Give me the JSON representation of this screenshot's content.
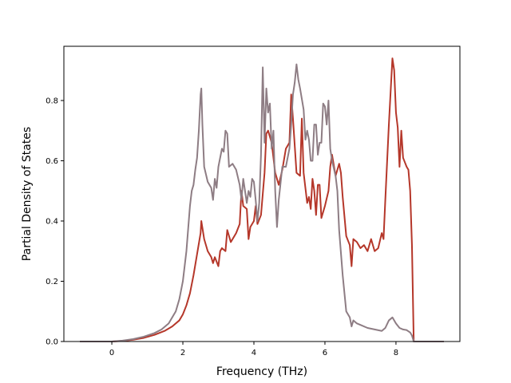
{
  "chart_data": {
    "type": "line",
    "title": "",
    "xlabel": "Frequency (THz)",
    "ylabel": "Partial Density of States",
    "xlim": [
      -1.35,
      9.8
    ],
    "ylim": [
      0.0,
      0.98
    ],
    "xticks": [
      0,
      2,
      4,
      6,
      8
    ],
    "xtick_labels": [
      "0",
      "2",
      "4",
      "6",
      "8"
    ],
    "yticks": [
      0.0,
      0.2,
      0.4,
      0.6,
      0.8
    ],
    "ytick_labels": [
      "0.0",
      "0.2",
      "0.4",
      "0.6",
      "0.8"
    ],
    "grid": false,
    "legend": "none",
    "series": [
      {
        "color": "#b5372a",
        "points": [
          [
            -0.9,
            0.0
          ],
          [
            0.0,
            0.0
          ],
          [
            0.3,
            0.002
          ],
          [
            0.6,
            0.006
          ],
          [
            0.9,
            0.012
          ],
          [
            1.2,
            0.022
          ],
          [
            1.5,
            0.036
          ],
          [
            1.7,
            0.05
          ],
          [
            1.9,
            0.07
          ],
          [
            2.0,
            0.09
          ],
          [
            2.1,
            0.12
          ],
          [
            2.2,
            0.16
          ],
          [
            2.3,
            0.22
          ],
          [
            2.4,
            0.29
          ],
          [
            2.5,
            0.36
          ],
          [
            2.52,
            0.4
          ],
          [
            2.6,
            0.34
          ],
          [
            2.7,
            0.3
          ],
          [
            2.8,
            0.28
          ],
          [
            2.85,
            0.26
          ],
          [
            2.9,
            0.28
          ],
          [
            3.0,
            0.25
          ],
          [
            3.05,
            0.3
          ],
          [
            3.1,
            0.31
          ],
          [
            3.2,
            0.3
          ],
          [
            3.25,
            0.37
          ],
          [
            3.35,
            0.33
          ],
          [
            3.5,
            0.36
          ],
          [
            3.6,
            0.39
          ],
          [
            3.65,
            0.5
          ],
          [
            3.7,
            0.45
          ],
          [
            3.8,
            0.44
          ],
          [
            3.85,
            0.34
          ],
          [
            3.9,
            0.38
          ],
          [
            4.0,
            0.4
          ],
          [
            4.05,
            0.45
          ],
          [
            4.1,
            0.39
          ],
          [
            4.2,
            0.42
          ],
          [
            4.3,
            0.56
          ],
          [
            4.35,
            0.69
          ],
          [
            4.4,
            0.7
          ],
          [
            4.5,
            0.66
          ],
          [
            4.6,
            0.56
          ],
          [
            4.7,
            0.52
          ],
          [
            4.8,
            0.57
          ],
          [
            4.9,
            0.64
          ],
          [
            5.0,
            0.66
          ],
          [
            5.05,
            0.82
          ],
          [
            5.1,
            0.74
          ],
          [
            5.2,
            0.56
          ],
          [
            5.3,
            0.55
          ],
          [
            5.35,
            0.74
          ],
          [
            5.4,
            0.56
          ],
          [
            5.5,
            0.46
          ],
          [
            5.55,
            0.48
          ],
          [
            5.6,
            0.44
          ],
          [
            5.65,
            0.54
          ],
          [
            5.7,
            0.5
          ],
          [
            5.75,
            0.42
          ],
          [
            5.8,
            0.52
          ],
          [
            5.85,
            0.52
          ],
          [
            5.9,
            0.41
          ],
          [
            6.0,
            0.45
          ],
          [
            6.1,
            0.5
          ],
          [
            6.15,
            0.58
          ],
          [
            6.2,
            0.62
          ],
          [
            6.3,
            0.55
          ],
          [
            6.4,
            0.59
          ],
          [
            6.45,
            0.56
          ],
          [
            6.5,
            0.48
          ],
          [
            6.6,
            0.35
          ],
          [
            6.7,
            0.32
          ],
          [
            6.75,
            0.25
          ],
          [
            6.8,
            0.34
          ],
          [
            6.9,
            0.33
          ],
          [
            7.0,
            0.31
          ],
          [
            7.1,
            0.32
          ],
          [
            7.2,
            0.3
          ],
          [
            7.3,
            0.34
          ],
          [
            7.4,
            0.3
          ],
          [
            7.5,
            0.31
          ],
          [
            7.6,
            0.36
          ],
          [
            7.65,
            0.34
          ],
          [
            7.7,
            0.47
          ],
          [
            7.8,
            0.72
          ],
          [
            7.9,
            0.94
          ],
          [
            7.95,
            0.9
          ],
          [
            8.0,
            0.76
          ],
          [
            8.05,
            0.71
          ],
          [
            8.1,
            0.58
          ],
          [
            8.15,
            0.7
          ],
          [
            8.2,
            0.61
          ],
          [
            8.3,
            0.58
          ],
          [
            8.35,
            0.57
          ],
          [
            8.4,
            0.5
          ],
          [
            8.45,
            0.32
          ],
          [
            8.5,
            0.0
          ],
          [
            9.35,
            0.0
          ]
        ]
      },
      {
        "color": "#8e7d84",
        "points": [
          [
            -0.9,
            0.0
          ],
          [
            0.0,
            0.0
          ],
          [
            0.3,
            0.003
          ],
          [
            0.6,
            0.008
          ],
          [
            0.9,
            0.016
          ],
          [
            1.2,
            0.028
          ],
          [
            1.4,
            0.04
          ],
          [
            1.6,
            0.06
          ],
          [
            1.8,
            0.1
          ],
          [
            1.9,
            0.14
          ],
          [
            2.0,
            0.2
          ],
          [
            2.1,
            0.3
          ],
          [
            2.2,
            0.45
          ],
          [
            2.25,
            0.5
          ],
          [
            2.3,
            0.52
          ],
          [
            2.35,
            0.57
          ],
          [
            2.4,
            0.61
          ],
          [
            2.45,
            0.7
          ],
          [
            2.5,
            0.82
          ],
          [
            2.52,
            0.84
          ],
          [
            2.55,
            0.72
          ],
          [
            2.6,
            0.58
          ],
          [
            2.7,
            0.53
          ],
          [
            2.8,
            0.51
          ],
          [
            2.85,
            0.47
          ],
          [
            2.9,
            0.54
          ],
          [
            2.95,
            0.51
          ],
          [
            3.0,
            0.58
          ],
          [
            3.1,
            0.64
          ],
          [
            3.15,
            0.63
          ],
          [
            3.2,
            0.7
          ],
          [
            3.25,
            0.69
          ],
          [
            3.3,
            0.58
          ],
          [
            3.4,
            0.59
          ],
          [
            3.5,
            0.57
          ],
          [
            3.6,
            0.52
          ],
          [
            3.65,
            0.47
          ],
          [
            3.7,
            0.54
          ],
          [
            3.75,
            0.5
          ],
          [
            3.8,
            0.46
          ],
          [
            3.85,
            0.5
          ],
          [
            3.9,
            0.48
          ],
          [
            3.95,
            0.54
          ],
          [
            4.0,
            0.53
          ],
          [
            4.05,
            0.47
          ],
          [
            4.1,
            0.4
          ],
          [
            4.15,
            0.46
          ],
          [
            4.2,
            0.62
          ],
          [
            4.25,
            0.91
          ],
          [
            4.3,
            0.66
          ],
          [
            4.35,
            0.84
          ],
          [
            4.4,
            0.76
          ],
          [
            4.45,
            0.79
          ],
          [
            4.5,
            0.64
          ],
          [
            4.55,
            0.7
          ],
          [
            4.6,
            0.5
          ],
          [
            4.65,
            0.38
          ],
          [
            4.7,
            0.47
          ],
          [
            4.8,
            0.58
          ],
          [
            4.9,
            0.58
          ],
          [
            5.0,
            0.64
          ],
          [
            5.05,
            0.72
          ],
          [
            5.1,
            0.82
          ],
          [
            5.15,
            0.86
          ],
          [
            5.2,
            0.92
          ],
          [
            5.25,
            0.87
          ],
          [
            5.3,
            0.84
          ],
          [
            5.4,
            0.77
          ],
          [
            5.45,
            0.67
          ],
          [
            5.5,
            0.7
          ],
          [
            5.55,
            0.67
          ],
          [
            5.6,
            0.6
          ],
          [
            5.65,
            0.6
          ],
          [
            5.7,
            0.72
          ],
          [
            5.75,
            0.72
          ],
          [
            5.8,
            0.62
          ],
          [
            5.85,
            0.66
          ],
          [
            5.9,
            0.66
          ],
          [
            5.95,
            0.79
          ],
          [
            6.0,
            0.78
          ],
          [
            6.05,
            0.72
          ],
          [
            6.1,
            0.8
          ],
          [
            6.15,
            0.64
          ],
          [
            6.2,
            0.6
          ],
          [
            6.3,
            0.55
          ],
          [
            6.35,
            0.5
          ],
          [
            6.4,
            0.37
          ],
          [
            6.5,
            0.22
          ],
          [
            6.6,
            0.1
          ],
          [
            6.7,
            0.08
          ],
          [
            6.75,
            0.05
          ],
          [
            6.8,
            0.07
          ],
          [
            6.9,
            0.06
          ],
          [
            7.0,
            0.055
          ],
          [
            7.2,
            0.045
          ],
          [
            7.4,
            0.04
          ],
          [
            7.6,
            0.035
          ],
          [
            7.7,
            0.045
          ],
          [
            7.8,
            0.07
          ],
          [
            7.9,
            0.08
          ],
          [
            8.0,
            0.06
          ],
          [
            8.1,
            0.045
          ],
          [
            8.2,
            0.04
          ],
          [
            8.3,
            0.038
          ],
          [
            8.4,
            0.03
          ],
          [
            8.45,
            0.02
          ],
          [
            8.5,
            0.0
          ],
          [
            9.35,
            0.0
          ]
        ]
      }
    ]
  }
}
